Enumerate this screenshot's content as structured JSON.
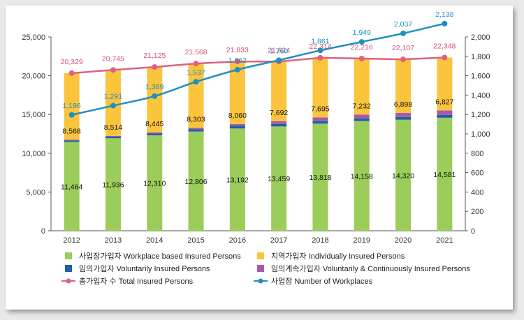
{
  "chart_data": {
    "type": "bar",
    "categories": [
      "2012",
      "2013",
      "2014",
      "2015",
      "2016",
      "2017",
      "2018",
      "2019",
      "2020",
      "2021"
    ],
    "series": [
      {
        "name": "사업장가입자 Workplace based Insured Persons",
        "type": "bar",
        "color": "#9ccc5a",
        "values": [
          11464,
          11936,
          12310,
          12806,
          13192,
          13459,
          13818,
          14158,
          14320,
          14581
        ]
      },
      {
        "name": "임의가입자 Voluntarily Insured Persons",
        "type": "bar",
        "color": "#1f5fa8",
        "values": [
          200,
          207,
          240,
          296,
          351,
          328,
          330,
          331,
          363,
          376
        ]
      },
      {
        "name": "임의계속가입자 Voluntarily & Continuously Insured Persons",
        "type": "bar",
        "color": "#a95aa8",
        "values": [
          97,
          88,
          130,
          163,
          230,
          345,
          471,
          495,
          526,
          564
        ]
      },
      {
        "name": "지역가입자 Individually Insured  Persons",
        "type": "bar",
        "color": "#fbc43d",
        "values": [
          8568,
          8514,
          8445,
          8303,
          8060,
          7692,
          7695,
          7232,
          6898,
          6827
        ]
      },
      {
        "name": "총가입자 수  Total Insured Persons",
        "type": "line",
        "axis": "left",
        "color": "#e0607e",
        "values": [
          20329,
          20745,
          21125,
          21568,
          21833,
          21824,
          22314,
          22216,
          22107,
          22348
        ]
      },
      {
        "name": "사업장 Number of Workplaces",
        "type": "line",
        "axis": "right",
        "color": "#1f8fc0",
        "values": [
          1196,
          1291,
          1389,
          1537,
          1662,
          1760,
          1861,
          1949,
          2037,
          2138
        ]
      }
    ],
    "ylim": [
      0,
      25000
    ],
    "yticks": [
      "0",
      "5,000",
      "10,000",
      "15,000",
      "20,000",
      "25,000"
    ],
    "y2lim": [
      0,
      2000
    ],
    "y2ticks": [
      "0",
      "200",
      "400",
      "600",
      "800",
      "1,000",
      "1,200",
      "1,400",
      "1,600",
      "1,800",
      "2,000"
    ],
    "bar_labels": {
      "workplace": [
        "11,464",
        "11,936",
        "12,310",
        "12,806",
        "13,192",
        "13,459",
        "13,818",
        "14,158",
        "14,320",
        "14,581"
      ],
      "individual": [
        "8,568",
        "8,514",
        "8,445",
        "8,303",
        "8,060",
        "7,692",
        "7,695",
        "7,232",
        "6,898",
        "6,827"
      ],
      "total": [
        "20,329",
        "20,745",
        "21,125",
        "21,568",
        "21,833",
        "21,824",
        "22,314",
        "22,216",
        "22,107",
        "22,348"
      ],
      "workplaces": [
        "1,196",
        "1,291",
        "1,389",
        "1,537",
        "1,662",
        "1,760",
        "1,861",
        "1,949",
        "2,037",
        "2,138"
      ]
    },
    "grid": false,
    "legend_position": "bottom",
    "legend": [
      {
        "label": "사업장가입자 Workplace based Insured Persons",
        "kind": "square",
        "color": "#9ccc5a"
      },
      {
        "label": "지역가입자 Individually Insured  Persons",
        "kind": "square",
        "color": "#fbc43d"
      },
      {
        "label": "임의가입자 Voluntarily Insured Persons",
        "kind": "square",
        "color": "#1f5fa8"
      },
      {
        "label": "임의계속가입자 Voluntarily &  Continuously Insured Persons",
        "kind": "square",
        "color": "#a95aa8"
      },
      {
        "label": "총가입자 수  Total Insured Persons",
        "kind": "line",
        "color": "#e0607e"
      },
      {
        "label": "사업장 Number of Workplaces",
        "kind": "line",
        "color": "#1f8fc0"
      }
    ]
  }
}
